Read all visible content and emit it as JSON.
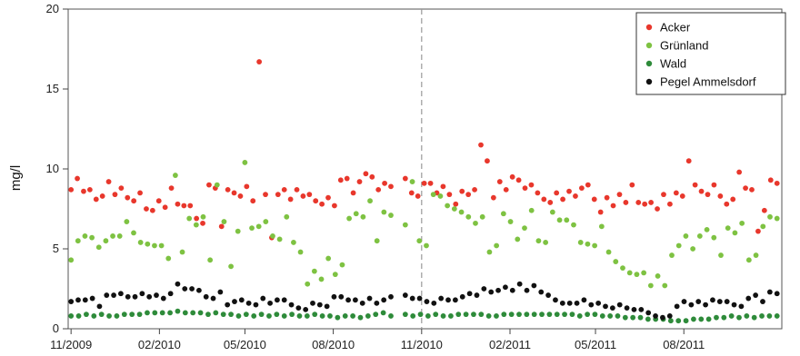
{
  "chart_data": {
    "type": "scatter",
    "ylabel": "mg/l",
    "xlabel": "",
    "ylim": [
      0,
      20
    ],
    "y_ticks": [
      0,
      5,
      10,
      15,
      20
    ],
    "x_ticks": [
      "11/2009",
      "02/2010",
      "05/2010",
      "08/2010",
      "11/2010",
      "02/2011",
      "05/2011",
      "08/2011"
    ],
    "x_range_days": [
      -3,
      740
    ],
    "vertical_line_at": "11/2010",
    "grid": false,
    "legend_position": "top-right",
    "series": [
      {
        "name": "Acker",
        "color": "#e8372c",
        "values": [
          8.7,
          9.4,
          8.6,
          8.7,
          8.1,
          8.3,
          9.2,
          8.4,
          8.8,
          8.2,
          8.0,
          8.5,
          7.5,
          7.4,
          8.0,
          7.6,
          8.8,
          7.8,
          7.7,
          7.7,
          6.9,
          6.6,
          9.0,
          8.8,
          6.4,
          8.7,
          8.5,
          8.3,
          8.9,
          8.0,
          16.7,
          8.4,
          5.7,
          8.4,
          8.7,
          8.1,
          8.7,
          8.3,
          8.4,
          8.0,
          7.8,
          8.2,
          7.7,
          9.3,
          9.4,
          8.5,
          9.2,
          9.7,
          9.5,
          8.7,
          9.1,
          8.9,
          9.4,
          8.5,
          8.3,
          9.1,
          9.1,
          8.5,
          8.9,
          8.4,
          7.8,
          8.6,
          8.4,
          8.7,
          11.5,
          10.5,
          8.2,
          9.2,
          8.7,
          9.5,
          9.3,
          8.8,
          9.0,
          8.5,
          8.1,
          7.9,
          8.5,
          8.1,
          8.6,
          8.3,
          8.8,
          9.0,
          8.1,
          7.3,
          8.2,
          7.7,
          8.4,
          7.9,
          9.0,
          7.9,
          7.8,
          7.9,
          7.5,
          8.4,
          7.8,
          8.5,
          8.3,
          10.5,
          9.0,
          8.6,
          8.4,
          9.0,
          8.3,
          7.8,
          8.1,
          9.8,
          8.8,
          8.7,
          6.1,
          7.4,
          9.3,
          9.1
        ]
      },
      {
        "name": "Grünland",
        "color": "#7ec242",
        "values": [
          4.3,
          5.5,
          5.8,
          5.7,
          5.1,
          5.5,
          5.8,
          5.8,
          6.7,
          6.0,
          5.4,
          5.3,
          5.2,
          5.2,
          4.4,
          9.6,
          4.8,
          6.9,
          6.5,
          7.0,
          4.3,
          9.0,
          6.7,
          3.9,
          6.1,
          10.4,
          6.3,
          6.4,
          6.7,
          5.8,
          5.6,
          7.0,
          5.4,
          4.8,
          2.8,
          3.6,
          3.1,
          4.4,
          3.4,
          4.0,
          6.9,
          7.2,
          7.0,
          8.0,
          5.5,
          7.3,
          7.1,
          6.5,
          9.2,
          5.5,
          5.2,
          8.4,
          8.3,
          7.7,
          7.5,
          7.3,
          7.0,
          6.6,
          7.0,
          4.8,
          5.2,
          7.2,
          6.7,
          5.6,
          6.3,
          7.4,
          5.5,
          5.4,
          7.3,
          6.8,
          6.8,
          6.5,
          5.4,
          5.3,
          5.2,
          6.4,
          4.8,
          4.2,
          3.8,
          3.5,
          3.4,
          3.5,
          2.7,
          3.3,
          2.7,
          4.6,
          5.2,
          5.8,
          5.0,
          5.8,
          6.2,
          5.7,
          4.6,
          6.3,
          6.0,
          6.6,
          4.3,
          4.6,
          6.4,
          7.0,
          6.9
        ]
      },
      {
        "name": "Wald",
        "color": "#2e8b3a",
        "values": [
          0.8,
          0.8,
          0.9,
          0.8,
          0.9,
          0.8,
          0.8,
          0.9,
          0.9,
          0.9,
          1.0,
          1.0,
          1.0,
          1.0,
          1.1,
          1.0,
          1.0,
          1.0,
          0.9,
          1.0,
          0.9,
          0.9,
          0.8,
          0.9,
          0.8,
          0.9,
          0.8,
          0.9,
          0.8,
          0.9,
          0.8,
          0.8,
          0.9,
          0.8,
          0.8,
          0.7,
          0.8,
          0.8,
          0.7,
          0.8,
          0.9,
          1.0,
          0.8,
          0.9,
          0.8,
          0.9,
          0.8,
          0.9,
          0.8,
          0.8,
          0.9,
          0.9,
          0.9,
          0.9,
          0.8,
          0.8,
          0.9,
          0.9,
          0.9,
          0.9,
          0.9,
          0.9,
          0.9,
          0.9,
          0.9,
          0.9,
          0.8,
          0.9,
          0.9,
          0.8,
          0.8,
          0.8,
          0.7,
          0.7,
          0.7,
          0.6,
          0.6,
          0.6,
          0.5,
          0.5,
          0.5,
          0.6,
          0.6,
          0.6,
          0.7,
          0.7,
          0.8,
          0.7,
          0.8,
          0.7,
          0.8,
          0.8,
          0.8
        ]
      },
      {
        "name": "Pegel Ammelsdorf",
        "color": "#111111",
        "values": [
          1.7,
          1.8,
          1.8,
          1.9,
          1.4,
          2.1,
          2.1,
          2.2,
          2.0,
          2.0,
          2.2,
          2.0,
          2.1,
          1.9,
          2.2,
          2.8,
          2.5,
          2.5,
          2.4,
          2.0,
          1.9,
          2.3,
          1.5,
          1.7,
          1.8,
          1.6,
          1.5,
          1.9,
          1.6,
          1.8,
          1.8,
          1.5,
          1.3,
          1.2,
          1.6,
          1.5,
          1.4,
          2.0,
          2.0,
          1.8,
          1.8,
          1.6,
          1.9,
          1.6,
          1.8,
          2.0,
          2.1,
          1.9,
          1.9,
          1.7,
          1.6,
          1.9,
          1.8,
          1.8,
          2.0,
          2.2,
          2.1,
          2.5,
          2.3,
          2.4,
          2.6,
          2.4,
          2.8,
          2.4,
          2.7,
          2.3,
          2.1,
          1.8,
          1.6,
          1.6,
          1.6,
          1.8,
          1.5,
          1.6,
          1.4,
          1.3,
          1.5,
          1.3,
          1.2,
          1.2,
          1.0,
          0.8,
          0.7,
          0.8,
          1.4,
          1.7,
          1.5,
          1.7,
          1.5,
          1.8,
          1.7,
          1.7,
          1.5,
          1.4,
          1.9,
          2.1,
          1.7,
          2.3,
          2.2
        ]
      }
    ]
  }
}
